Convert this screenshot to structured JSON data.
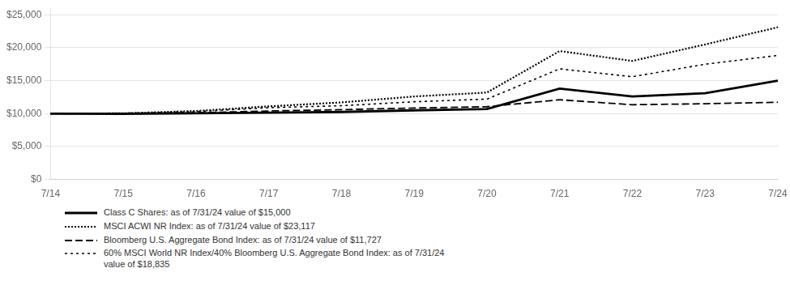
{
  "chart_data": {
    "type": "line",
    "categories": [
      "7/14",
      "7/15",
      "7/16",
      "7/17",
      "7/18",
      "7/19",
      "7/20",
      "7/21",
      "7/22",
      "7/23",
      "7/24"
    ],
    "series": [
      {
        "name": "Class C Shares: as of 7/31/24 value of $15,000",
        "color": "#000000",
        "line_style": "solid",
        "values": [
          10000,
          9950,
          10050,
          10150,
          10250,
          10500,
          10700,
          13800,
          12600,
          13100,
          15000
        ]
      },
      {
        "name": "MSCI ACWI NR Index: as of 7/31/24 value of $23,117",
        "color": "#000000",
        "line_style": "dotted",
        "values": [
          10000,
          10050,
          10400,
          11100,
          11700,
          12600,
          13200,
          19500,
          18000,
          20500,
          23117
        ]
      },
      {
        "name": "Bloomberg U.S. Aggregate Bond Index: as of 7/31/24 value of $11,727",
        "color": "#000000",
        "line_style": "dashed",
        "values": [
          10000,
          10030,
          10120,
          10400,
          10600,
          10850,
          11050,
          12100,
          11350,
          11500,
          11727
        ]
      },
      {
        "name": "60% MSCI World NR Index/40% Bloomberg U.S. Aggregate Bond Index: as of 7/31/24\nvalue of $18,835",
        "color": "#000000",
        "line_style": "short_dashed",
        "values": [
          10000,
          10060,
          10300,
          10900,
          11200,
          11800,
          12200,
          16800,
          15600,
          17500,
          18835
        ]
      }
    ],
    "ylim": [
      0,
      26000
    ],
    "yticks": [
      {
        "value": 0,
        "label": "$0"
      },
      {
        "value": 5000,
        "label": "$5,000"
      },
      {
        "value": 10000,
        "label": "$10,000"
      },
      {
        "value": 15000,
        "label": "$15,000"
      },
      {
        "value": 20000,
        "label": "$20,000"
      },
      {
        "value": 25000,
        "label": "$25,000"
      }
    ],
    "grid": true,
    "legend": "bottom"
  }
}
